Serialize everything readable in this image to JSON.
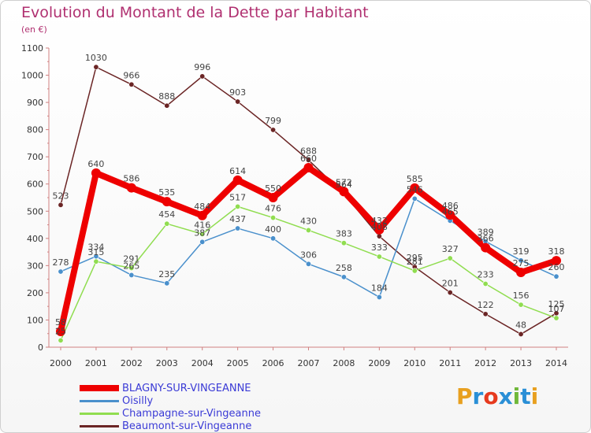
{
  "header": {
    "title": "Evolution du Montant de la Dette par Habitant",
    "subtitle": "(en €)"
  },
  "logo": {
    "text": "Proxiti",
    "colors": [
      "#e8a020",
      "#2a8fd6",
      "#e63a1e",
      "#2a8fd6",
      "#70b83a",
      "#2a8fd6",
      "#e8a020"
    ]
  },
  "chart_data": {
    "type": "line",
    "categories": [
      "2000",
      "2001",
      "2002",
      "2003",
      "2004",
      "2005",
      "2006",
      "2007",
      "2008",
      "2009",
      "2010",
      "2011",
      "2012",
      "2013",
      "2014"
    ],
    "ylim": [
      0,
      1100
    ],
    "yticks": [
      0,
      100,
      200,
      300,
      400,
      500,
      600,
      700,
      800,
      900,
      1000,
      1100
    ],
    "grid": false,
    "legend_position": "bottom-left",
    "series": [
      {
        "name": "BLAGNY-SUR-VINGEANNE",
        "color": "#ee0000",
        "width": 8,
        "values": [
          58,
          640,
          586,
          535,
          484,
          614,
          550,
          660,
          572,
          432,
          585,
          486,
          366,
          275,
          318
        ],
        "labels": [
          "58",
          "640",
          "586",
          "535",
          "484",
          "614",
          "550",
          "660",
          "572",
          "432",
          "585",
          "486",
          "366",
          "275",
          "318"
        ]
      },
      {
        "name": "Oisilly",
        "color": "#4a90cc",
        "width": 1.5,
        "values": [
          278,
          334,
          265,
          235,
          387,
          437,
          400,
          306,
          258,
          184,
          546,
          465,
          389,
          319,
          260
        ],
        "labels": [
          "278",
          "334",
          "265",
          "235",
          "387",
          "437",
          "400",
          "306",
          "258",
          "184",
          "546",
          "465",
          "389",
          "319",
          "260"
        ]
      },
      {
        "name": "Champagne-sur-Vingeanne",
        "color": "#90dd50",
        "width": 1.5,
        "values": [
          25,
          315,
          291,
          454,
          416,
          517,
          476,
          430,
          383,
          333,
          281,
          327,
          233,
          156,
          107
        ],
        "labels": [
          "25",
          "315",
          "291",
          "454",
          "416",
          "517",
          "476",
          "430",
          "383",
          "333",
          "281",
          "327",
          "233",
          "156",
          "107"
        ]
      },
      {
        "name": "Beaumont-sur-Vingeanne",
        "color": "#6b2525",
        "width": 1.5,
        "values": [
          523,
          1030,
          966,
          888,
          996,
          903,
          799,
          688,
          564,
          408,
          295,
          201,
          122,
          48,
          125
        ],
        "labels": [
          "523",
          "1030",
          "966",
          "888",
          "996",
          "903",
          "799",
          "688",
          "564",
          "408",
          "295",
          "201",
          "122",
          "48",
          "125"
        ]
      }
    ]
  }
}
